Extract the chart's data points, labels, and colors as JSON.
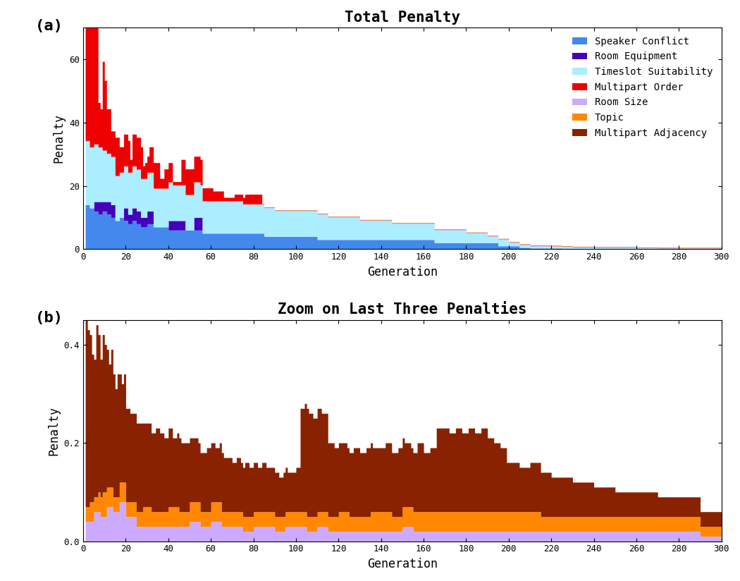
{
  "title_a": "Total Penalty",
  "title_b": "Zoom on Last Three Penalties",
  "xlabel": "Generation",
  "ylabel": "Penalty",
  "generations": 300,
  "colors": {
    "speaker_conflict": "#4488EE",
    "room_equipment": "#4400BB",
    "timeslot_suitability": "#AAEEFF",
    "multipart_order": "#EE0000",
    "room_size": "#CCAAFF",
    "topic": "#FF8800",
    "multipart_adjacency": "#882200"
  },
  "legend_labels": [
    "Speaker Conflict",
    "Room Equipment",
    "Timeslot Suitability",
    "Multipart Order",
    "Room Size",
    "Topic",
    "Multipart Adjacency"
  ],
  "label_a": "(a)",
  "label_b": "(b)",
  "ylim_a": [
    0,
    70
  ],
  "ylim_b": [
    0,
    0.45
  ],
  "yticks_a": [
    0,
    20,
    40,
    60
  ],
  "yticks_b": [
    0,
    0.2,
    0.4
  ],
  "xticks": [
    0,
    20,
    40,
    60,
    80,
    100,
    120,
    140,
    160,
    180,
    200,
    220,
    240,
    260,
    280,
    300
  ]
}
